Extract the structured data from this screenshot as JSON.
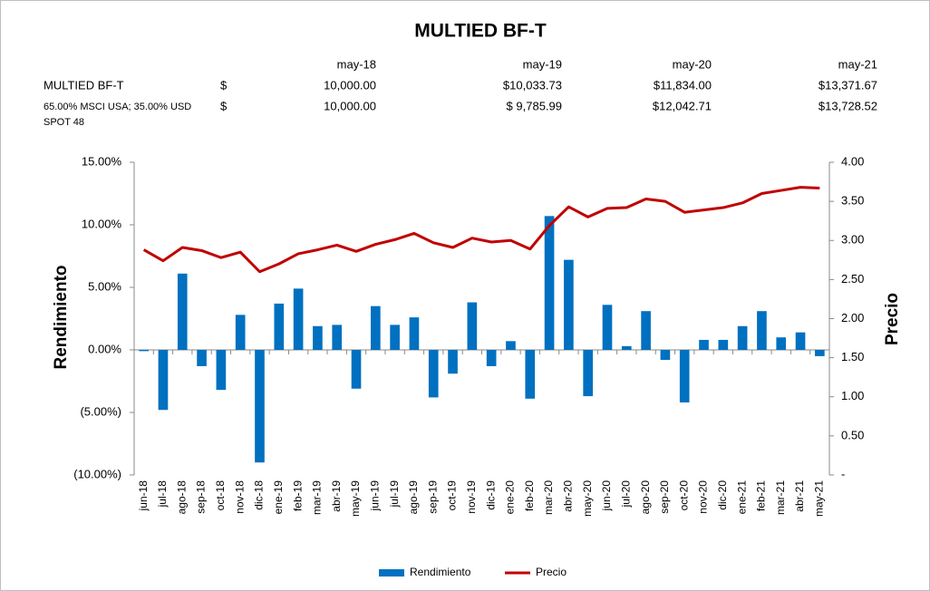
{
  "chart_data": {
    "type": "bar_line",
    "title": "MULTIED BF-T",
    "table": {
      "columns": [
        "may-18",
        "may-19",
        "may-20",
        "may-21"
      ],
      "rows": [
        {
          "label": "MULTIED BF-T",
          "currency": "$",
          "values": [
            "10,000.00",
            "$10,033.73",
            "$11,834.00",
            "$13,371.67"
          ]
        },
        {
          "label": "65.00% MSCI USA; 35.00% USD SPOT 48",
          "currency": "$",
          "values": [
            "10,000.00",
            "$ 9,785.99",
            "$12,042.71",
            "$13,728.52"
          ]
        }
      ]
    },
    "categories": [
      "jun-18",
      "jul-18",
      "ago-18",
      "sep-18",
      "oct-18",
      "nov-18",
      "dic-18",
      "ene-19",
      "feb-19",
      "mar-19",
      "abr-19",
      "may-19",
      "jun-19",
      "jul-19",
      "ago-19",
      "sep-19",
      "oct-19",
      "nov-19",
      "dic-19",
      "ene-20",
      "feb-20",
      "mar-20",
      "abr-20",
      "may-20",
      "jun-20",
      "jul-20",
      "ago-20",
      "sep-20",
      "oct-20",
      "nov-20",
      "dic-20",
      "ene-21",
      "feb-21",
      "mar-21",
      "abr-21",
      "may-21"
    ],
    "series": [
      {
        "name": "Rendimiento",
        "color": "#0070c0",
        "type": "bar",
        "values": [
          -0.1,
          -4.8,
          6.1,
          -1.3,
          -3.2,
          2.8,
          -9.0,
          3.7,
          4.9,
          1.9,
          2.0,
          -3.1,
          3.5,
          2.0,
          2.6,
          -3.8,
          -1.9,
          3.8,
          -1.3,
          0.7,
          -3.9,
          10.7,
          7.2,
          -3.7,
          3.6,
          0.3,
          3.1,
          -0.8,
          -4.2,
          0.8,
          0.8,
          1.9,
          3.1,
          1.0,
          1.4,
          -0.5
        ]
      },
      {
        "name": "Precio",
        "color": "#c00000",
        "type": "line",
        "axis": "y2",
        "values": [
          2.88,
          2.74,
          2.91,
          2.87,
          2.78,
          2.85,
          2.6,
          2.7,
          2.83,
          2.88,
          2.94,
          2.86,
          2.95,
          3.01,
          3.09,
          2.97,
          2.91,
          3.03,
          2.98,
          3.0,
          2.89,
          3.19,
          3.43,
          3.3,
          3.41,
          3.42,
          3.53,
          3.5,
          3.36,
          3.39,
          3.42,
          3.48,
          3.6,
          3.64,
          3.68,
          3.67
        ]
      }
    ],
    "ylabel": "Rendimiento",
    "y2label": "Precio",
    "ylim": [
      -10,
      15
    ],
    "yticks": [
      {
        "value": -10,
        "label": "(10.00%)"
      },
      {
        "value": -5,
        "label": "(5.00%)"
      },
      {
        "value": 0,
        "label": "0.00%"
      },
      {
        "value": 5,
        "label": "5.00%"
      },
      {
        "value": 10,
        "label": "10.00%"
      },
      {
        "value": 15,
        "label": "15.00%"
      }
    ],
    "y2lim": [
      0,
      4
    ],
    "y2ticks": [
      {
        "value": 0,
        "label": "-"
      },
      {
        "value": 0.5,
        "label": "0.50"
      },
      {
        "value": 1,
        "label": "1.00"
      },
      {
        "value": 1.5,
        "label": "1.50"
      },
      {
        "value": 2,
        "label": "2.00"
      },
      {
        "value": 2.5,
        "label": "2.50"
      },
      {
        "value": 3,
        "label": "3.00"
      },
      {
        "value": 3.5,
        "label": "3.50"
      },
      {
        "value": 4,
        "label": "4.00"
      }
    ],
    "legend": "bottom"
  }
}
